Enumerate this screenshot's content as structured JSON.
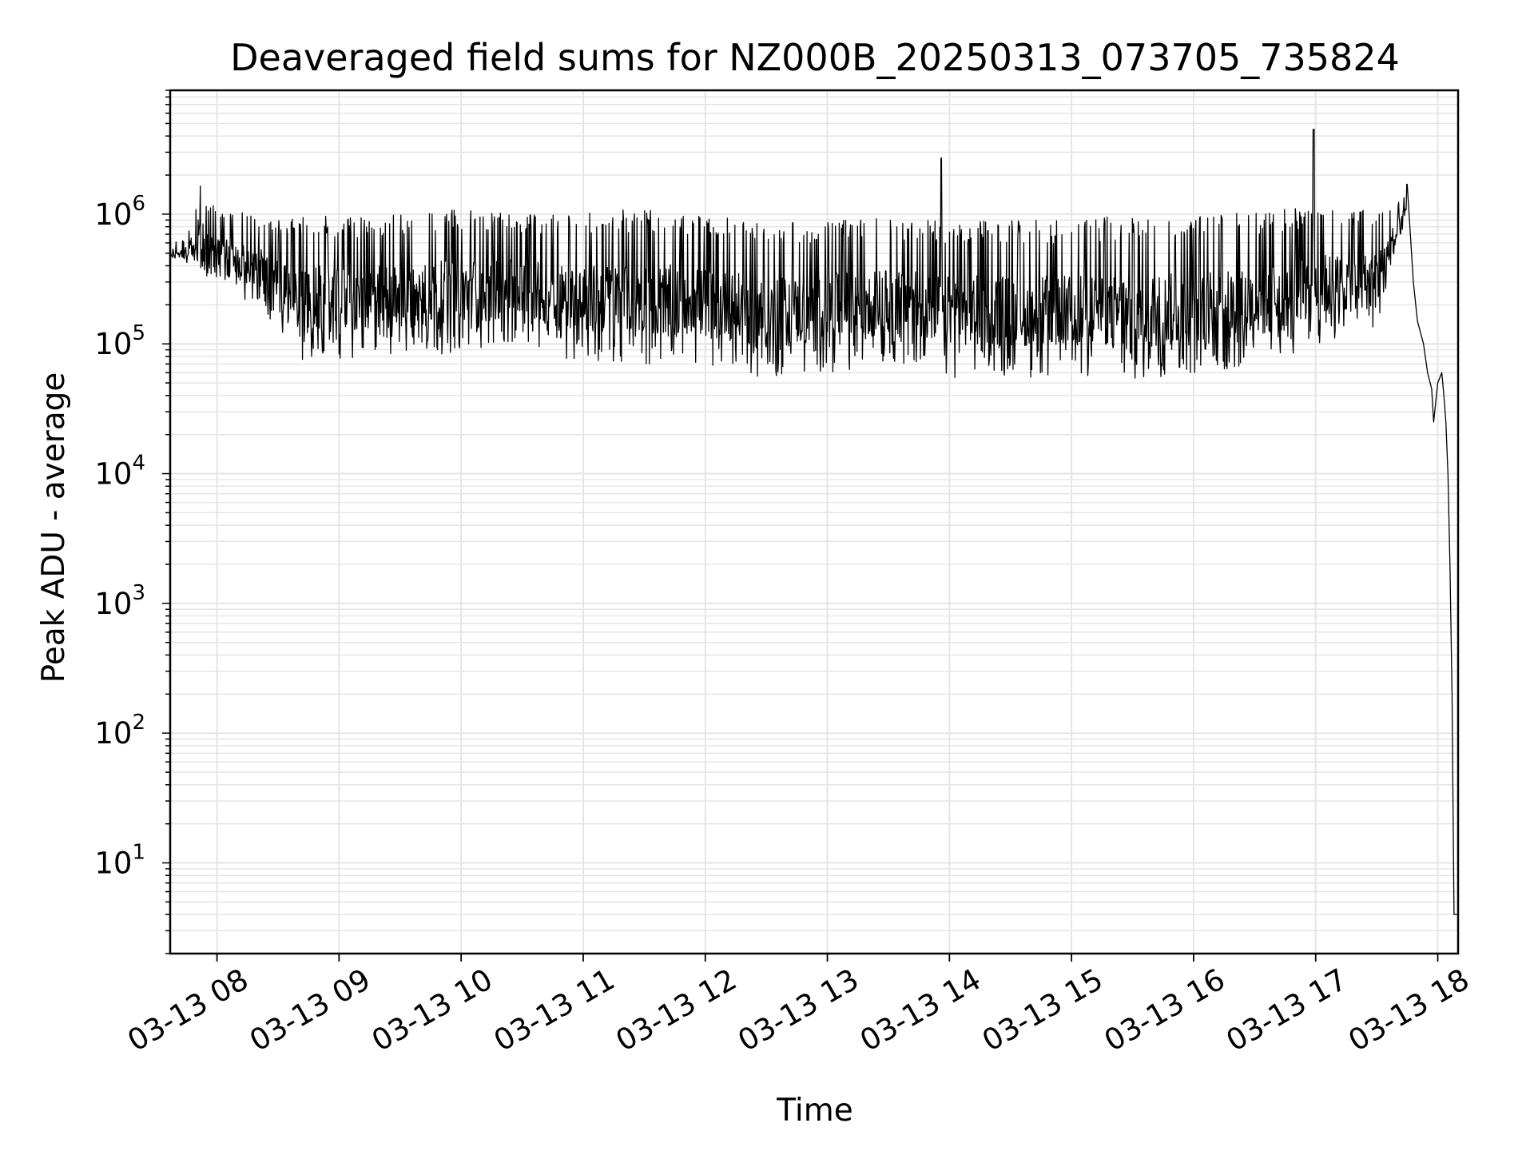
{
  "chart_data": {
    "type": "line",
    "title": "Deaveraged field sums for NZ000B_20250313_073705_735824",
    "xlabel": "Time",
    "ylabel": "Peak ADU - average",
    "xlim": [
      "2025-03-13 07:37",
      "2025-03-13 18:10"
    ],
    "ylim": [
      2,
      9000000
    ],
    "y_scale": "log",
    "grid": true,
    "line_color": "#000000",
    "grid_color": "#e5e5e5",
    "x_tick_labels": [
      {
        "label": "03-13 08",
        "value": "2025-03-13 08:00"
      },
      {
        "label": "03-13 09",
        "value": "2025-03-13 09:00"
      },
      {
        "label": "03-13 10",
        "value": "2025-03-13 10:00"
      },
      {
        "label": "03-13 11",
        "value": "2025-03-13 11:00"
      },
      {
        "label": "03-13 12",
        "value": "2025-03-13 12:00"
      },
      {
        "label": "03-13 13",
        "value": "2025-03-13 13:00"
      },
      {
        "label": "03-13 14",
        "value": "2025-03-13 14:00"
      },
      {
        "label": "03-13 15",
        "value": "2025-03-13 15:00"
      },
      {
        "label": "03-13 16",
        "value": "2025-03-13 16:00"
      },
      {
        "label": "03-13 17",
        "value": "2025-03-13 17:00"
      },
      {
        "label": "03-13 18",
        "value": "2025-03-13 18:00"
      }
    ],
    "y_tick_labels": [
      {
        "base": "10",
        "exp": "1",
        "value": 10
      },
      {
        "base": "10",
        "exp": "2",
        "value": 100
      },
      {
        "base": "10",
        "exp": "3",
        "value": 1000
      },
      {
        "base": "10",
        "exp": "4",
        "value": 10000
      },
      {
        "base": "10",
        "exp": "5",
        "value": 100000
      },
      {
        "base": "10",
        "exp": "6",
        "value": 1000000
      }
    ],
    "envelope_upper": {
      "x": [
        "2025-03-13 07:37",
        "2025-03-13 07:45",
        "2025-03-13 07:50",
        "2025-03-13 07:52",
        "2025-03-13 07:55",
        "2025-03-13 08:00",
        "2025-03-13 08:20",
        "2025-03-13 08:30",
        "2025-03-13 08:50",
        "2025-03-13 09:00",
        "2025-03-13 09:30",
        "2025-03-13 10:00",
        "2025-03-13 10:30",
        "2025-03-13 11:00",
        "2025-03-13 11:30",
        "2025-03-13 12:00",
        "2025-03-13 12:30",
        "2025-03-13 13:00",
        "2025-03-13 13:30",
        "2025-03-13 14:00",
        "2025-03-13 14:30",
        "2025-03-13 15:00",
        "2025-03-13 15:30",
        "2025-03-13 16:00",
        "2025-03-13 16:30",
        "2025-03-13 17:00",
        "2025-03-13 17:30",
        "2025-03-13 17:40",
        "2025-03-13 17:45"
      ],
      "y": [
        600000,
        650000,
        1300000,
        1700000,
        1300000,
        1100000,
        1000000,
        900000,
        1000000,
        950000,
        1000000,
        1100000,
        1000000,
        1050000,
        1100000,
        1000000,
        850000,
        900000,
        950000,
        900000,
        900000,
        900000,
        1000000,
        950000,
        1050000,
        1150000,
        1100000,
        1300000,
        1500000
      ]
    },
    "envelope_lower": {
      "x": [
        "2025-03-13 07:37",
        "2025-03-13 07:50",
        "2025-03-13 08:00",
        "2025-03-13 08:20",
        "2025-03-13 08:40",
        "2025-03-13 09:00",
        "2025-03-13 09:30",
        "2025-03-13 10:00",
        "2025-03-13 10:30",
        "2025-03-13 11:00",
        "2025-03-13 11:30",
        "2025-03-13 12:00",
        "2025-03-13 12:30",
        "2025-03-13 13:00",
        "2025-03-13 13:30",
        "2025-03-13 14:00",
        "2025-03-13 14:30",
        "2025-03-13 15:00",
        "2025-03-13 15:30",
        "2025-03-13 16:00",
        "2025-03-13 16:30",
        "2025-03-13 17:00",
        "2025-03-13 17:30",
        "2025-03-13 17:45"
      ],
      "y": [
        450000,
        400000,
        250000,
        200000,
        70000,
        75000,
        80000,
        85000,
        100000,
        70000,
        70000,
        70000,
        50000,
        60000,
        70000,
        55000,
        55000,
        55000,
        50000,
        55000,
        60000,
        100000,
        120000,
        900000
      ]
    },
    "spikes": [
      {
        "x": "2025-03-13 13:56",
        "y": 2700000
      },
      {
        "x": "2025-03-13 16:59",
        "y": 4500000
      },
      {
        "x": "2025-03-13 17:45",
        "y": 1700000
      }
    ],
    "tail": {
      "x": [
        "2025-03-13 17:45",
        "2025-03-13 17:48",
        "2025-03-13 17:50",
        "2025-03-13 17:53",
        "2025-03-13 17:55",
        "2025-03-13 17:57",
        "2025-03-13 17:58",
        "2025-03-13 18:00",
        "2025-03-13 18:02",
        "2025-03-13 18:03",
        "2025-03-13 18:04",
        "2025-03-13 18:05",
        "2025-03-13 18:06",
        "2025-03-13 18:07",
        "2025-03-13 18:08",
        "2025-03-13 18:09",
        "2025-03-13 18:10"
      ],
      "y": [
        1300000,
        300000,
        150000,
        100000,
        60000,
        45000,
        25000,
        50000,
        60000,
        40000,
        25000,
        10000,
        2000,
        200,
        4,
        4,
        4
      ]
    }
  }
}
